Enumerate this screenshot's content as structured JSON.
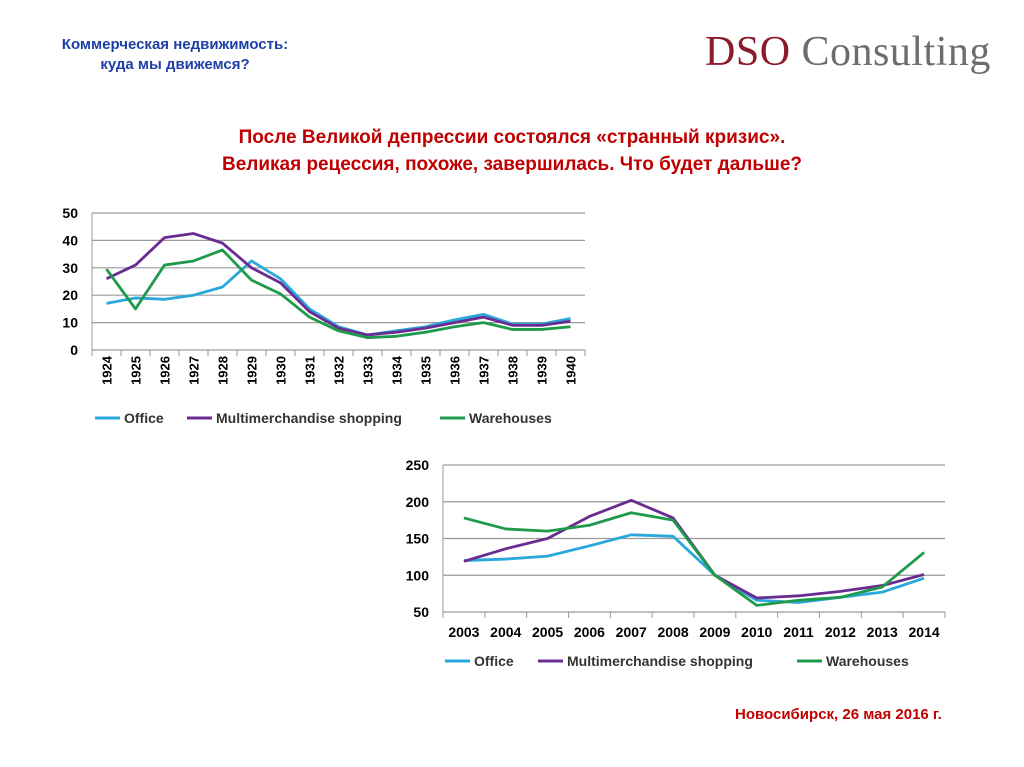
{
  "header": {
    "subtitle_line1": "Коммерческая недвижимость:",
    "subtitle_line2": "куда мы движемся?",
    "logo_part1": "DSO",
    "logo_part2": "Consulting"
  },
  "title": {
    "line1": "После Великой депрессии состоялся «странный кризис».",
    "line2": "Великая рецессия, похоже, завершилась. Что будет дальше?"
  },
  "footer": {
    "text": "Новосибирск, 26 мая 2016 г."
  },
  "colors": {
    "office": "#2aa8dc",
    "multi": "#6a2c91",
    "warehouses": "#1e9a4a"
  },
  "chart_data": [
    {
      "type": "line",
      "title": "",
      "xlabel": "",
      "ylabel": "",
      "ylim": [
        0,
        50
      ],
      "yticks": [
        0,
        10,
        20,
        30,
        40,
        50
      ],
      "grid": true,
      "legend": "bottom",
      "categories": [
        "1924",
        "1925",
        "1926",
        "1927",
        "1928",
        "1929",
        "1930",
        "1931",
        "1932",
        "1933",
        "1934",
        "1935",
        "1936",
        "1937",
        "1938",
        "1939",
        "1940"
      ],
      "series": [
        {
          "name": "Office",
          "values": [
            17,
            19,
            18.5,
            20,
            23,
            32.5,
            26,
            15,
            8.5,
            5.5,
            7,
            8.5,
            11,
            13,
            9.5,
            9.5,
            11.5
          ]
        },
        {
          "name": "Multimerchandise shopping",
          "values": [
            26,
            31,
            41,
            42.5,
            39,
            30,
            24.5,
            14,
            8,
            5.5,
            6.5,
            8,
            10,
            12,
            9,
            9,
            10.5
          ]
        },
        {
          "name": "Warehouses",
          "values": [
            29.5,
            15,
            31,
            32.5,
            36.5,
            25.5,
            20.5,
            12,
            7,
            4.5,
            5,
            6.5,
            8.5,
            10,
            7.5,
            7.5,
            8.5
          ]
        }
      ]
    },
    {
      "type": "line",
      "title": "",
      "xlabel": "",
      "ylabel": "",
      "ylim": [
        50,
        250
      ],
      "yticks": [
        50,
        100,
        150,
        200,
        250
      ],
      "grid": true,
      "legend": "bottom",
      "categories": [
        "2003",
        "2004",
        "2005",
        "2006",
        "2007",
        "2008",
        "2009",
        "2010",
        "2011",
        "2012",
        "2013",
        "2014"
      ],
      "series": [
        {
          "name": "Office",
          "values": [
            120,
            122,
            126,
            140,
            155,
            153,
            100,
            66,
            63,
            70,
            77,
            96
          ]
        },
        {
          "name": "Multimerchandise shopping",
          "values": [
            119,
            136,
            150,
            180,
            202,
            178,
            100,
            69,
            72,
            78,
            86,
            101
          ]
        },
        {
          "name": "Warehouses",
          "values": [
            178,
            163,
            160,
            168,
            185,
            175,
            100,
            59,
            66,
            70,
            84,
            131
          ]
        }
      ]
    }
  ]
}
